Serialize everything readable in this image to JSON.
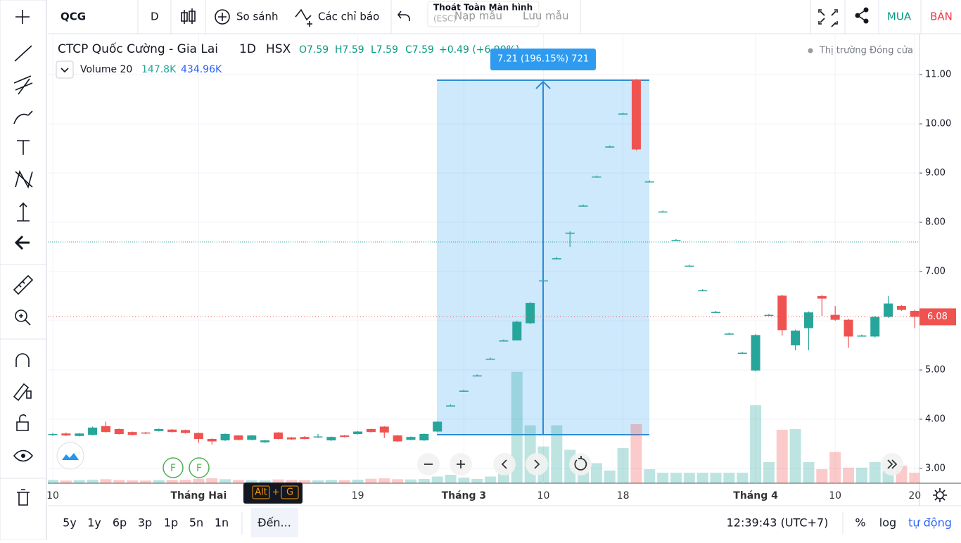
{
  "toolbar": {
    "symbol": "QCG",
    "interval": "D",
    "compare": "So sánh",
    "indicators": "Các chỉ báo",
    "load": "Nạp mẫu",
    "save": "Lưu mẫu",
    "hint": "Thoát Toàn Màn hình",
    "hint_key": "(ESC)",
    "buy": "MUA",
    "sell": "BÁN"
  },
  "legend": {
    "title": "CTCP Quốc Cường - Gia Lai",
    "interval": "1D",
    "exchange": "HSX",
    "open": "O7.59",
    "high": "H7.59",
    "low": "L7.59",
    "close": "C7.59",
    "change": "+0.49 (+6.90%)",
    "volume_label": "Volume 20",
    "volume": "147.8K",
    "volume_ma": "434.96K"
  },
  "market_status": "Thị trường Đóng cửa",
  "measure_label": "7.21 (196.15%) 721",
  "events": [
    "F",
    "F"
  ],
  "shortcut": [
    "Alt",
    "+",
    "G"
  ],
  "bottom": {
    "ranges": [
      "5y",
      "1y",
      "6p",
      "3p",
      "1p",
      "5n",
      "1n"
    ],
    "goto": "Đến...",
    "time": "12:39:43 (UTC+7)",
    "percent": "%",
    "log": "log",
    "auto": "tự động"
  },
  "chart_data": {
    "type": "candlestick",
    "x": [
      "10",
      null,
      null,
      null,
      null,
      null,
      null,
      null,
      null,
      null,
      null,
      "Tháng Hai",
      null,
      null,
      null,
      null,
      null,
      null,
      null,
      null,
      null,
      null,
      null,
      "19",
      null,
      null,
      null,
      null,
      null,
      null,
      null,
      "Tháng 3",
      null,
      null,
      null,
      null,
      null,
      "10",
      null,
      null,
      null,
      null,
      null,
      "18",
      null,
      null,
      null,
      null,
      null,
      null,
      null,
      null,
      null,
      "Tháng 4",
      null,
      null,
      null,
      null,
      null,
      "10",
      null,
      null,
      null,
      null,
      null,
      "20"
    ],
    "open": [
      3.7,
      3.71,
      3.66,
      3.68,
      3.86,
      3.8,
      3.74,
      3.73,
      3.76,
      3.79,
      3.78,
      3.72,
      3.6,
      3.57,
      3.67,
      3.58,
      3.53,
      3.73,
      3.63,
      3.64,
      3.63,
      3.57,
      3.67,
      3.7,
      3.8,
      3.85,
      3.67,
      3.58,
      3.57,
      3.75,
      4.28,
      4.58,
      4.89,
      5.23,
      5.6,
      5.6,
      5.95,
      6.82,
      7.27,
      7.79,
      8.34,
      8.93,
      9.54,
      10.21,
      10.89,
      8.83,
      8.22,
      7.64,
      7.12,
      6.62,
      6.18,
      5.74,
      5.35,
      4.99,
      6.12,
      6.51,
      5.5,
      5.85,
      6.5,
      6.12,
      6.02,
      5.7,
      5.68,
      6.08,
      6.3,
      6.2
    ],
    "high": [
      3.72,
      3.73,
      3.72,
      3.85,
      3.95,
      3.81,
      3.75,
      3.74,
      3.81,
      3.8,
      3.79,
      3.73,
      3.61,
      3.71,
      3.68,
      3.68,
      3.58,
      3.74,
      3.64,
      3.66,
      3.7,
      3.65,
      3.68,
      3.76,
      3.81,
      3.86,
      3.68,
      3.65,
      3.71,
      3.96,
      4.3,
      4.6,
      4.91,
      5.25,
      5.62,
      6.0,
      6.38,
      6.84,
      7.3,
      7.82,
      8.36,
      8.95,
      9.56,
      10.23,
      10.91,
      8.85,
      8.24,
      7.66,
      7.14,
      6.64,
      6.2,
      5.76,
      5.37,
      5.73,
      6.14,
      6.53,
      5.82,
      6.19,
      6.53,
      6.3,
      6.04,
      5.72,
      6.1,
      6.5,
      6.32,
      6.22
    ],
    "low": [
      3.66,
      3.66,
      3.65,
      3.67,
      3.73,
      3.69,
      3.67,
      3.7,
      3.75,
      3.73,
      3.71,
      3.52,
      3.49,
      3.56,
      3.57,
      3.57,
      3.52,
      3.59,
      3.58,
      3.59,
      3.62,
      3.56,
      3.63,
      3.69,
      3.73,
      3.62,
      3.54,
      3.57,
      3.56,
      3.74,
      4.26,
      4.56,
      4.87,
      5.21,
      5.58,
      5.6,
      5.93,
      6.8,
      7.25,
      7.5,
      8.32,
      8.91,
      9.52,
      10.19,
      9.46,
      8.81,
      8.2,
      7.62,
      7.1,
      6.6,
      6.16,
      5.72,
      5.33,
      4.97,
      6.1,
      5.7,
      5.4,
      5.4,
      6.1,
      6.0,
      5.45,
      5.68,
      5.66,
      6.06,
      6.2,
      5.85
    ],
    "close": [
      3.7,
      3.67,
      3.71,
      3.83,
      3.74,
      3.7,
      3.68,
      3.71,
      3.8,
      3.74,
      3.72,
      3.6,
      3.55,
      3.7,
      3.58,
      3.67,
      3.57,
      3.6,
      3.59,
      3.6,
      3.65,
      3.64,
      3.64,
      3.75,
      3.74,
      3.73,
      3.55,
      3.64,
      3.7,
      3.95,
      4.28,
      4.58,
      4.89,
      5.23,
      5.6,
      5.98,
      6.36,
      6.82,
      7.27,
      7.79,
      8.34,
      8.93,
      9.54,
      10.21,
      9.48,
      8.83,
      8.22,
      7.64,
      7.12,
      6.62,
      6.18,
      5.74,
      5.35,
      5.71,
      6.12,
      5.81,
      5.8,
      6.17,
      6.45,
      6.02,
      5.68,
      5.7,
      6.08,
      6.35,
      6.22,
      6.08
    ],
    "volume": [
      150,
      120,
      140,
      160,
      180,
      150,
      130,
      120,
      140,
      150,
      160,
      200,
      220,
      180,
      150,
      140,
      130,
      170,
      150,
      140,
      130,
      150,
      140,
      160,
      200,
      220,
      180,
      170,
      190,
      300,
      380,
      250,
      190,
      300,
      630,
      5000,
      2600,
      1650,
      2600,
      1500,
      1150,
      900,
      570,
      1580,
      2650,
      630,
      470,
      470,
      470,
      470,
      470,
      470,
      470,
      3500,
      950,
      2400,
      2430,
      950,
      630,
      1400,
      700,
      700,
      950,
      950,
      790,
      470
    ],
    "ylim": [
      2.7,
      11.83
    ],
    "vlim": [
      0,
      6000
    ],
    "yticks": [
      {
        "value": 3,
        "label": "3.00"
      },
      {
        "value": 4,
        "label": "4.00"
      },
      {
        "value": 5,
        "label": "5.00"
      },
      {
        "value": 6,
        "label": "6.00"
      },
      {
        "value": 7,
        "label": "7.00"
      },
      {
        "value": 8,
        "label": "8.00"
      },
      {
        "value": 9,
        "label": "9.00"
      },
      {
        "value": 10,
        "label": "10.00"
      },
      {
        "value": 11,
        "label": "11.00"
      }
    ],
    "last_price": {
      "value": 6.08,
      "label": "6.08"
    },
    "up_color": "#26a69a",
    "down_color": "#ef5350",
    "grid": true
  }
}
